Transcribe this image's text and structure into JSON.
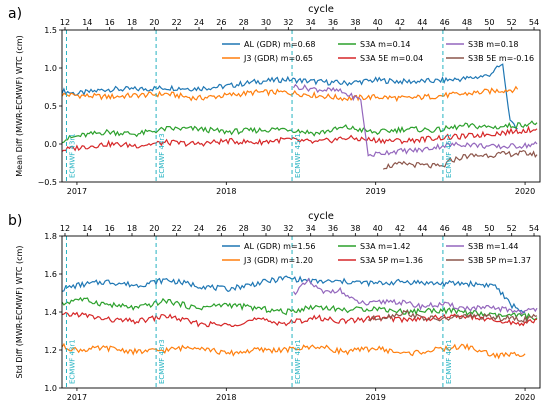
{
  "chart_data": [
    {
      "type": "line",
      "panel_label": "a)",
      "top_axis_label": "cycle",
      "ylabel": "Mean Diff (MWR-ECMWF) WTC (cm)",
      "ylim": [
        -0.5,
        1.5
      ],
      "y_ticks": [
        "−0.5",
        "0.0",
        "0.5",
        "1.0",
        "1.5"
      ],
      "y_tick_values": [
        -0.5,
        0,
        0.5,
        1.0,
        1.5
      ],
      "xlim": [
        2016.9,
        2020.1
      ],
      "x_ticks": [
        "2017",
        "2018",
        "2019",
        "2020"
      ],
      "x_tick_values": [
        2017,
        2018,
        2019,
        2020
      ],
      "cycle_ticks": [
        "12",
        "14",
        "16",
        "18",
        "20",
        "22",
        "24",
        "26",
        "28",
        "30",
        "32",
        "34",
        "36",
        "38",
        "40",
        "42",
        "44",
        "46",
        "48",
        "50",
        "52",
        "54"
      ],
      "cycle_tick_values": [
        12,
        14,
        16,
        18,
        20,
        22,
        24,
        26,
        28,
        30,
        32,
        34,
        36,
        38,
        40,
        42,
        44,
        46,
        48,
        50,
        52,
        54
      ],
      "vlines": [
        {
          "x": 2016.93,
          "label": "ECMWF 43r1"
        },
        {
          "x": 2017.53,
          "label": "ECMWF 43r3"
        },
        {
          "x": 2018.44,
          "label": "ECMWF 45r1"
        },
        {
          "x": 2019.45,
          "label": "ECMWF 46r1"
        }
      ],
      "series": [
        {
          "name": "AL (GDR) m=0.68",
          "color": "#1f77b4",
          "points": [
            [
              2016.9,
              0.7
            ],
            [
              2017.0,
              0.66
            ],
            [
              2017.2,
              0.72
            ],
            [
              2017.4,
              0.72
            ],
            [
              2017.6,
              0.74
            ],
            [
              2017.8,
              0.73
            ],
            [
              2018.0,
              0.76
            ],
            [
              2018.2,
              0.82
            ],
            [
              2018.4,
              0.85
            ],
            [
              2018.6,
              0.82
            ],
            [
              2018.8,
              0.8
            ],
            [
              2019.0,
              0.84
            ],
            [
              2019.2,
              0.82
            ],
            [
              2019.4,
              0.83
            ],
            [
              2019.6,
              0.86
            ],
            [
              2019.75,
              0.9
            ],
            [
              2019.85,
              1.05
            ],
            [
              2019.9,
              0.28
            ],
            [
              2019.95,
              0.2
            ]
          ]
        },
        {
          "name": "J3 (GDR) m=0.65",
          "color": "#ff7f0e",
          "points": [
            [
              2016.9,
              0.65
            ],
            [
              2017.2,
              0.62
            ],
            [
              2017.4,
              0.64
            ],
            [
              2017.6,
              0.66
            ],
            [
              2017.8,
              0.6
            ],
            [
              2018.0,
              0.64
            ],
            [
              2018.2,
              0.68
            ],
            [
              2018.4,
              0.68
            ],
            [
              2018.6,
              0.64
            ],
            [
              2018.8,
              0.6
            ],
            [
              2019.0,
              0.62
            ],
            [
              2019.2,
              0.6
            ],
            [
              2019.4,
              0.63
            ],
            [
              2019.6,
              0.66
            ],
            [
              2019.8,
              0.7
            ],
            [
              2019.95,
              0.72
            ]
          ]
        },
        {
          "name": "S3A  m=0.14",
          "color": "#2ca02c",
          "points": [
            [
              2016.9,
              0.05
            ],
            [
              2017.0,
              0.1
            ],
            [
              2017.2,
              0.16
            ],
            [
              2017.4,
              0.13
            ],
            [
              2017.6,
              0.2
            ],
            [
              2017.8,
              0.2
            ],
            [
              2018.0,
              0.16
            ],
            [
              2018.2,
              0.18
            ],
            [
              2018.4,
              0.2
            ],
            [
              2018.6,
              0.14
            ],
            [
              2018.8,
              0.22
            ],
            [
              2019.0,
              0.15
            ],
            [
              2019.2,
              0.2
            ],
            [
              2019.4,
              0.18
            ],
            [
              2019.6,
              0.24
            ],
            [
              2019.8,
              0.22
            ],
            [
              2020.0,
              0.26
            ],
            [
              2020.08,
              0.28
            ]
          ]
        },
        {
          "name": "S3A 5E m=0.04",
          "color": "#d62728",
          "points": [
            [
              2016.9,
              -0.08
            ],
            [
              2017.0,
              -0.05
            ],
            [
              2017.2,
              0.0
            ],
            [
              2017.4,
              -0.02
            ],
            [
              2017.6,
              0.02
            ],
            [
              2017.8,
              0.0
            ],
            [
              2018.0,
              0.04
            ],
            [
              2018.2,
              0.02
            ],
            [
              2018.4,
              0.06
            ],
            [
              2018.6,
              0.02
            ],
            [
              2018.8,
              0.08
            ],
            [
              2019.0,
              0.05
            ],
            [
              2019.2,
              0.04
            ],
            [
              2019.4,
              0.08
            ],
            [
              2019.6,
              0.1
            ],
            [
              2019.8,
              0.14
            ],
            [
              2020.0,
              0.18
            ],
            [
              2020.08,
              0.2
            ]
          ]
        },
        {
          "name": "S3B m=0.18",
          "color": "#9467bd",
          "points": [
            [
              2018.45,
              0.76
            ],
            [
              2018.6,
              0.72
            ],
            [
              2018.75,
              0.7
            ],
            [
              2018.85,
              0.62
            ],
            [
              2018.9,
              0.58
            ],
            [
              2018.95,
              -0.15
            ],
            [
              2019.1,
              -0.1
            ],
            [
              2019.3,
              -0.08
            ],
            [
              2019.45,
              -0.02
            ],
            [
              2019.6,
              0.0
            ],
            [
              2019.8,
              -0.04
            ],
            [
              2020.0,
              -0.02
            ],
            [
              2020.08,
              0.0
            ]
          ]
        },
        {
          "name": "S3B 5E m=-0.16",
          "color": "#8c564b",
          "points": [
            [
              2019.05,
              -0.3
            ],
            [
              2019.2,
              -0.26
            ],
            [
              2019.3,
              -0.28
            ],
            [
              2019.45,
              -0.3
            ],
            [
              2019.5,
              -0.22
            ],
            [
              2019.6,
              -0.16
            ],
            [
              2019.8,
              -0.14
            ],
            [
              2020.0,
              -0.12
            ],
            [
              2020.08,
              -0.14
            ]
          ]
        }
      ]
    },
    {
      "type": "line",
      "panel_label": "b)",
      "top_axis_label": "cycle",
      "ylabel": "Std Diff (MWR-ECMWF) WTC (cm)",
      "ylim": [
        1.0,
        1.8
      ],
      "y_ticks": [
        "1.0",
        "1.2",
        "1.4",
        "1.6",
        "1.8"
      ],
      "y_tick_values": [
        1.0,
        1.2,
        1.4,
        1.6,
        1.8
      ],
      "xlim": [
        2016.9,
        2020.1
      ],
      "x_ticks": [
        "2017",
        "2018",
        "2019",
        "2020"
      ],
      "x_tick_values": [
        2017,
        2018,
        2019,
        2020
      ],
      "cycle_ticks": [
        "12",
        "14",
        "16",
        "18",
        "20",
        "22",
        "24",
        "26",
        "28",
        "30",
        "32",
        "34",
        "36",
        "38",
        "40",
        "42",
        "44",
        "46",
        "48",
        "50",
        "52",
        "54"
      ],
      "cycle_tick_values": [
        12,
        14,
        16,
        18,
        20,
        22,
        24,
        26,
        28,
        30,
        32,
        34,
        36,
        38,
        40,
        42,
        44,
        46,
        48,
        50,
        52,
        54
      ],
      "vlines": [
        {
          "x": 2016.93,
          "label": "ECMWF 43r1"
        },
        {
          "x": 2017.53,
          "label": "ECMWF 43r3"
        },
        {
          "x": 2018.44,
          "label": "ECMWF 45r1"
        },
        {
          "x": 2019.45,
          "label": "ECMWF 46r1"
        }
      ],
      "series": [
        {
          "name": "AL (GDR) m=1.56",
          "color": "#1f77b4",
          "points": [
            [
              2016.9,
              1.52
            ],
            [
              2017.0,
              1.54
            ],
            [
              2017.2,
              1.56
            ],
            [
              2017.4,
              1.54
            ],
            [
              2017.6,
              1.57
            ],
            [
              2017.8,
              1.54
            ],
            [
              2018.0,
              1.52
            ],
            [
              2018.2,
              1.55
            ],
            [
              2018.4,
              1.58
            ],
            [
              2018.6,
              1.56
            ],
            [
              2018.8,
              1.56
            ],
            [
              2019.0,
              1.55
            ],
            [
              2019.2,
              1.56
            ],
            [
              2019.4,
              1.55
            ],
            [
              2019.6,
              1.55
            ],
            [
              2019.8,
              1.54
            ],
            [
              2019.9,
              1.44
            ],
            [
              2020.0,
              1.4
            ]
          ]
        },
        {
          "name": "J3 (GDR) m=1.20",
          "color": "#ff7f0e",
          "points": [
            [
              2016.9,
              1.22
            ],
            [
              2017.0,
              1.2
            ],
            [
              2017.2,
              1.21
            ],
            [
              2017.4,
              1.19
            ],
            [
              2017.6,
              1.2
            ],
            [
              2017.8,
              1.22
            ],
            [
              2018.0,
              1.18
            ],
            [
              2018.2,
              1.2
            ],
            [
              2018.4,
              1.2
            ],
            [
              2018.6,
              1.22
            ],
            [
              2018.8,
              1.19
            ],
            [
              2019.0,
              1.21
            ],
            [
              2019.2,
              1.18
            ],
            [
              2019.4,
              1.2
            ],
            [
              2019.6,
              1.22
            ],
            [
              2019.8,
              1.17
            ],
            [
              2020.0,
              1.18
            ]
          ]
        },
        {
          "name": "S3A  m=1.42",
          "color": "#2ca02c",
          "points": [
            [
              2016.9,
              1.44
            ],
            [
              2017.0,
              1.47
            ],
            [
              2017.2,
              1.44
            ],
            [
              2017.4,
              1.42
            ],
            [
              2017.6,
              1.46
            ],
            [
              2017.8,
              1.42
            ],
            [
              2018.0,
              1.44
            ],
            [
              2018.2,
              1.42
            ],
            [
              2018.4,
              1.4
            ],
            [
              2018.6,
              1.43
            ],
            [
              2018.8,
              1.41
            ],
            [
              2019.0,
              1.42
            ],
            [
              2019.2,
              1.4
            ],
            [
              2019.4,
              1.41
            ],
            [
              2019.6,
              1.4
            ],
            [
              2019.8,
              1.38
            ],
            [
              2020.0,
              1.38
            ],
            [
              2020.08,
              1.37
            ]
          ]
        },
        {
          "name": "S3A 5P m=1.36",
          "color": "#d62728",
          "points": [
            [
              2016.9,
              1.38
            ],
            [
              2017.0,
              1.39
            ],
            [
              2017.2,
              1.36
            ],
            [
              2017.4,
              1.35
            ],
            [
              2017.6,
              1.38
            ],
            [
              2017.8,
              1.34
            ],
            [
              2018.0,
              1.33
            ],
            [
              2018.2,
              1.36
            ],
            [
              2018.4,
              1.34
            ],
            [
              2018.6,
              1.37
            ],
            [
              2018.8,
              1.35
            ],
            [
              2019.0,
              1.37
            ],
            [
              2019.2,
              1.36
            ],
            [
              2019.4,
              1.37
            ],
            [
              2019.6,
              1.38
            ],
            [
              2019.8,
              1.35
            ],
            [
              2020.0,
              1.34
            ],
            [
              2020.08,
              1.36
            ]
          ]
        },
        {
          "name": "S3B  m=1.44",
          "color": "#9467bd",
          "points": [
            [
              2018.45,
              1.5
            ],
            [
              2018.55,
              1.56
            ],
            [
              2018.65,
              1.5
            ],
            [
              2018.75,
              1.52
            ],
            [
              2018.85,
              1.46
            ],
            [
              2018.95,
              1.44
            ],
            [
              2019.1,
              1.46
            ],
            [
              2019.3,
              1.43
            ],
            [
              2019.45,
              1.44
            ],
            [
              2019.6,
              1.42
            ],
            [
              2019.8,
              1.42
            ],
            [
              2020.0,
              1.4
            ],
            [
              2020.08,
              1.42
            ]
          ]
        },
        {
          "name": "S3B 5P m=1.37",
          "color": "#8c564b",
          "points": [
            [
              2018.95,
              1.36
            ],
            [
              2019.1,
              1.38
            ],
            [
              2019.2,
              1.4
            ],
            [
              2019.3,
              1.37
            ],
            [
              2019.45,
              1.36
            ],
            [
              2019.6,
              1.38
            ],
            [
              2019.8,
              1.37
            ],
            [
              2020.0,
              1.36
            ],
            [
              2020.08,
              1.38
            ]
          ]
        }
      ]
    }
  ]
}
